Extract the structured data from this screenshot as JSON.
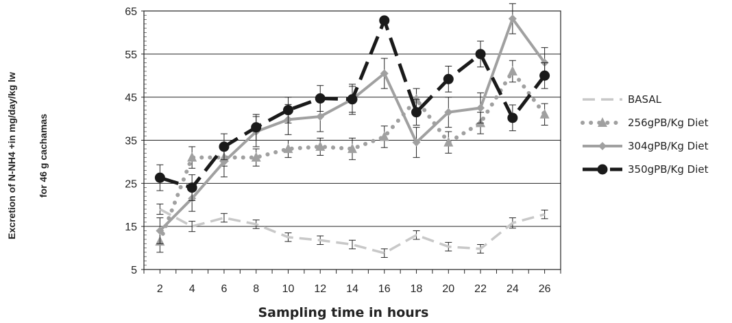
{
  "chart_data": {
    "type": "line",
    "xlabel": "Sampling time in hours",
    "ylabel_line1": "Excretion of N-NH4 +in mg/day/kg lw",
    "ylabel_line2": "for 46 g cachamas",
    "x": [
      2,
      4,
      6,
      8,
      10,
      12,
      14,
      16,
      18,
      20,
      22,
      24,
      26
    ],
    "xlim": [
      1,
      27
    ],
    "ylim": [
      5,
      65
    ],
    "yticks": [
      5,
      15,
      25,
      35,
      45,
      55,
      65
    ],
    "grid": "horizontal",
    "legend_position": "right",
    "series": [
      {
        "name": "BASAL",
        "color": "#c8c8c8",
        "marker": "none",
        "dash": "dashed",
        "values": [
          19,
          15,
          17,
          15.5,
          12.5,
          11.8,
          10.8,
          8.8,
          13,
          10.3,
          9.8,
          15.8,
          17.8
        ],
        "errors": [
          1.2,
          1.2,
          1,
          1,
          1,
          1,
          1,
          1,
          1,
          1,
          1,
          1.2,
          1
        ]
      },
      {
        "name": "256gPB/Kg Diet",
        "color": "#a0a0a0",
        "marker": "triangle",
        "dash": "dotted",
        "values": [
          11.5,
          31,
          31,
          31,
          33,
          33.5,
          33,
          35.8,
          44.5,
          34.5,
          39,
          51,
          41
        ],
        "errors": [
          2.5,
          2.5,
          2,
          2,
          2,
          2,
          2.5,
          2.5,
          2.5,
          2.5,
          2.5,
          2.5,
          2.5
        ]
      },
      {
        "name": "304gPB/Kg Diet",
        "color": "#a0a0a0",
        "marker": "diamond",
        "dash": "solid",
        "values": [
          14,
          21.5,
          30,
          37,
          39.8,
          40.5,
          44.5,
          50.5,
          34.5,
          41.5,
          42.5,
          63.2,
          53
        ],
        "errors": [
          3,
          3,
          3.5,
          3.5,
          3.5,
          3.5,
          3.5,
          3.5,
          3.5,
          3.5,
          3.5,
          3.5,
          3.5
        ]
      },
      {
        "name": "350gPB/Kg Diet",
        "color": "#1a1a1a",
        "marker": "circle",
        "dash": "longdash",
        "values": [
          26.3,
          24,
          33.5,
          38,
          42,
          44.7,
          44.5,
          62.8,
          41.5,
          49.2,
          55,
          40.2,
          50
        ],
        "errors": [
          3,
          3,
          3,
          3,
          3,
          3,
          3,
          0,
          3,
          3,
          3,
          3,
          3
        ]
      }
    ]
  }
}
